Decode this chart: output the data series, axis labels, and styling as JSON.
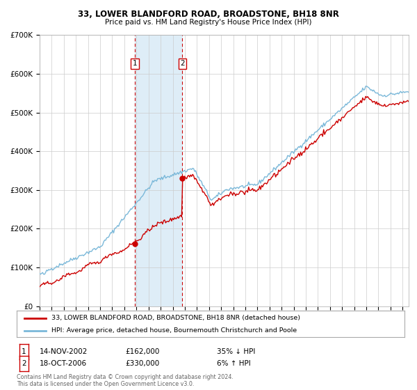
{
  "title": "33, LOWER BLANDFORD ROAD, BROADSTONE, BH18 8NR",
  "subtitle": "Price paid vs. HM Land Registry's House Price Index (HPI)",
  "legend_line1": "33, LOWER BLANDFORD ROAD, BROADSTONE, BH18 8NR (detached house)",
  "legend_line2": "HPI: Average price, detached house, Bournemouth Christchurch and Poole",
  "footnote1": "Contains HM Land Registry data © Crown copyright and database right 2024.",
  "footnote2": "This data is licensed under the Open Government Licence v3.0.",
  "purchase1": {
    "date_label": "14-NOV-2002",
    "price": "£162,000",
    "hpi_diff": "35% ↓ HPI",
    "date_num": 2002.87
  },
  "purchase2": {
    "date_label": "18-OCT-2006",
    "price": "£330,000",
    "hpi_diff": "6% ↑ HPI",
    "date_num": 2006.8
  },
  "hpi_color": "#7ab8d9",
  "price_color": "#cc0000",
  "bg_color": "#ffffff",
  "grid_color": "#cccccc",
  "shade_color": "#deedf7",
  "dashed_line_color": "#cc0000",
  "ylim": [
    0,
    700000
  ],
  "yticks": [
    0,
    100000,
    200000,
    300000,
    400000,
    500000,
    600000,
    700000
  ],
  "ytick_labels": [
    "£0",
    "£100K",
    "£200K",
    "£300K",
    "£400K",
    "£500K",
    "£600K",
    "£700K"
  ],
  "xlim_start": 1995.0,
  "xlim_end": 2025.5
}
